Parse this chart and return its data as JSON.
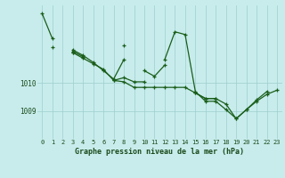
{
  "title": "Graphe pression niveau de la mer (hPa)",
  "bg_color": "#c8ecec",
  "grid_color": "#9ecece",
  "line_color": "#1a5e1a",
  "xlim": [
    -0.5,
    23.5
  ],
  "ylim": [
    1008.0,
    1012.8
  ],
  "yticks": [
    1009,
    1010
  ],
  "xticks": [
    0,
    1,
    2,
    3,
    4,
    5,
    6,
    7,
    8,
    9,
    10,
    11,
    12,
    13,
    14,
    15,
    16,
    17,
    18,
    19,
    20,
    21,
    22,
    23
  ],
  "series": [
    [
      1012.5,
      1011.6,
      null,
      1011.1,
      1010.9,
      1010.7,
      1010.5,
      1010.1,
      1010.05,
      1009.85,
      1009.85,
      1009.85,
      1009.85,
      1009.85,
      1009.85,
      1009.65,
      1009.45,
      1009.45,
      1009.25,
      1008.72,
      1009.05,
      1009.35,
      1009.6,
      1009.75
    ],
    [
      null,
      null,
      null,
      1011.2,
      1011.0,
      1010.75,
      1010.45,
      1010.15,
      1010.85,
      null,
      1010.45,
      1010.25,
      1010.65,
      null,
      null,
      1009.65,
      1009.45,
      1009.45,
      null,
      null,
      null,
      null,
      null,
      null
    ],
    [
      null,
      null,
      null,
      1011.15,
      1010.95,
      null,
      null,
      1010.1,
      1010.2,
      1010.05,
      1010.05,
      null,
      null,
      null,
      null,
      null,
      null,
      null,
      null,
      null,
      null,
      null,
      null,
      null
    ],
    [
      null,
      1011.3,
      null,
      1011.1,
      null,
      null,
      null,
      null,
      null,
      null,
      null,
      null,
      null,
      null,
      null,
      null,
      null,
      null,
      null,
      null,
      null,
      null,
      null,
      null
    ],
    [
      null,
      null,
      null,
      null,
      null,
      null,
      null,
      null,
      1011.35,
      null,
      null,
      null,
      1010.85,
      1011.85,
      1011.75,
      1009.7,
      1009.35,
      1009.35,
      1009.05,
      1008.73,
      1009.05,
      1009.4,
      1009.7,
      null
    ]
  ]
}
